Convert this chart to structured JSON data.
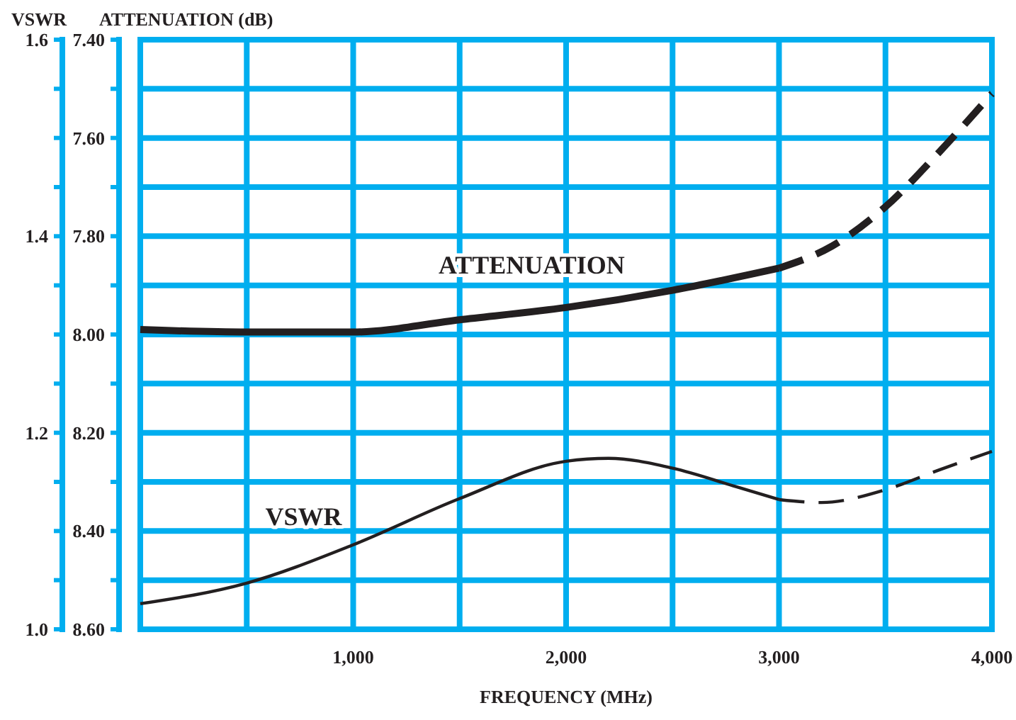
{
  "chart_data": {
    "type": "line",
    "xlabel": "FREQUENCY (MHz)",
    "ylabel": "ATTENUATION (dB)",
    "y2label": "VSWR",
    "xlim": [
      0,
      4000
    ],
    "xticks": [
      {
        "value": 0,
        "label": null
      },
      {
        "value": 500,
        "label": null
      },
      {
        "value": 1000,
        "label": "1,000"
      },
      {
        "value": 1500,
        "label": null
      },
      {
        "value": 2000,
        "label": "2,000"
      },
      {
        "value": 2500,
        "label": null
      },
      {
        "value": 3000,
        "label": "3,000"
      },
      {
        "value": 3500,
        "label": null
      },
      {
        "value": 4000,
        "label": "4,000"
      }
    ],
    "ylim": [
      8.6,
      7.4
    ],
    "yticks": [
      {
        "value": 7.4,
        "label": "7.40"
      },
      {
        "value": 7.5,
        "label": null
      },
      {
        "value": 7.6,
        "label": "7.60"
      },
      {
        "value": 7.7,
        "label": null
      },
      {
        "value": 7.8,
        "label": "7.80"
      },
      {
        "value": 7.9,
        "label": null
      },
      {
        "value": 8.0,
        "label": "8.00"
      },
      {
        "value": 8.1,
        "label": null
      },
      {
        "value": 8.2,
        "label": "8.20"
      },
      {
        "value": 8.3,
        "label": null
      },
      {
        "value": 8.4,
        "label": "8.40"
      },
      {
        "value": 8.5,
        "label": null
      },
      {
        "value": 8.6,
        "label": "8.60"
      }
    ],
    "y2lim": [
      1.0,
      1.6
    ],
    "y2ticks": [
      {
        "value": 1.0,
        "label": "1.0"
      },
      {
        "value": 1.05,
        "label": null
      },
      {
        "value": 1.1,
        "label": null
      },
      {
        "value": 1.15,
        "label": null
      },
      {
        "value": 1.2,
        "label": "1.2"
      },
      {
        "value": 1.25,
        "label": null
      },
      {
        "value": 1.3,
        "label": null
      },
      {
        "value": 1.35,
        "label": null
      },
      {
        "value": 1.4,
        "label": "1.4"
      },
      {
        "value": 1.45,
        "label": null
      },
      {
        "value": 1.5,
        "label": null
      },
      {
        "value": 1.55,
        "label": null
      },
      {
        "value": 1.6,
        "label": "1.6"
      }
    ],
    "grid": true,
    "marker": "none",
    "series": [
      {
        "name": "ATTENUATION",
        "color": "#231f20",
        "line_style": "solid",
        "x": [
          0,
          500,
          1000,
          1500,
          2000,
          2500,
          3000
        ],
        "values": [
          7.99,
          7.995,
          7.995,
          7.97,
          7.945,
          7.91,
          7.865
        ]
      },
      {
        "color": "#231f20",
        "line_style": "dashed",
        "x": [
          3000,
          3250,
          3500,
          3750,
          4000
        ],
        "values": [
          7.865,
          7.82,
          7.74,
          7.63,
          7.51
        ]
      },
      {
        "name": "VSWR",
        "color": "#231f20",
        "axis": "y2",
        "line_style": "solid",
        "x": [
          0,
          500,
          1000,
          1500,
          2000,
          2200,
          2500,
          2800,
          3000
        ],
        "values": [
          1.026,
          1.047,
          1.086,
          1.133,
          1.171,
          1.174,
          1.164,
          1.145,
          1.132
        ]
      },
      {
        "color": "#231f20",
        "axis": "y2",
        "line_style": "dashed",
        "x": [
          3000,
          3200,
          3500,
          3750,
          4000
        ],
        "values": [
          1.132,
          1.129,
          1.142,
          1.162,
          1.181
        ]
      }
    ]
  }
}
